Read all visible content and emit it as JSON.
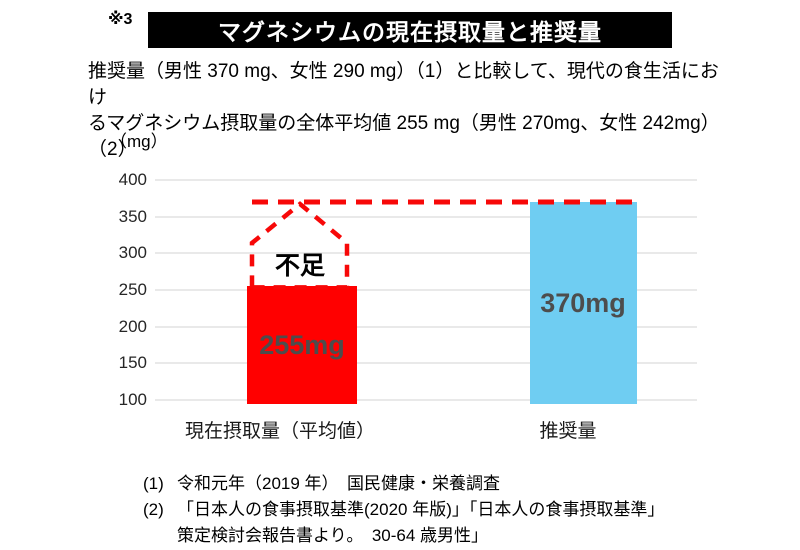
{
  "header": {
    "ref_mark": "※3",
    "title": "マグネシウムの現在摂取量と推奨量"
  },
  "intro": {
    "line1": "推奨量（男性 370 mg、女性 290 mg）（1）と比較して、現代の食生活におけ",
    "line2": "るマグネシウム摂取量の全体平均値 255 mg（男性 270mg、女性 242mg）（2）"
  },
  "chart_data": {
    "type": "bar",
    "unit_label": "（mg）",
    "categories": [
      "現在摂取量（平均値）",
      "推奨量"
    ],
    "values": [
      255,
      370
    ],
    "bar_labels": [
      "255mg",
      "370mg"
    ],
    "bar_colors": [
      "#ff0000",
      "#6fcdf2"
    ],
    "bar_label_color": "#4d4d4d",
    "ylim": [
      100,
      400
    ],
    "yticks": [
      400,
      350,
      300,
      250,
      200,
      150,
      100
    ],
    "grid": true,
    "legend": "none",
    "threshold": {
      "value": 370,
      "color": "#f70808",
      "style": "dashed"
    },
    "annotation": {
      "label": "不足",
      "color": "#000000",
      "shape": "dashed-house-outline"
    }
  },
  "footnotes": [
    {
      "marker": "(1)",
      "text": "令和元年（2019 年）　国民健康・栄養調査"
    },
    {
      "marker": "(2)",
      "text": "「日本人の食事摂取基準(2020 年版)」「日本人の食事摂取基準」"
    },
    {
      "marker": "",
      "text": "策定検討会報告書より。　30-64 歳男性」"
    }
  ]
}
